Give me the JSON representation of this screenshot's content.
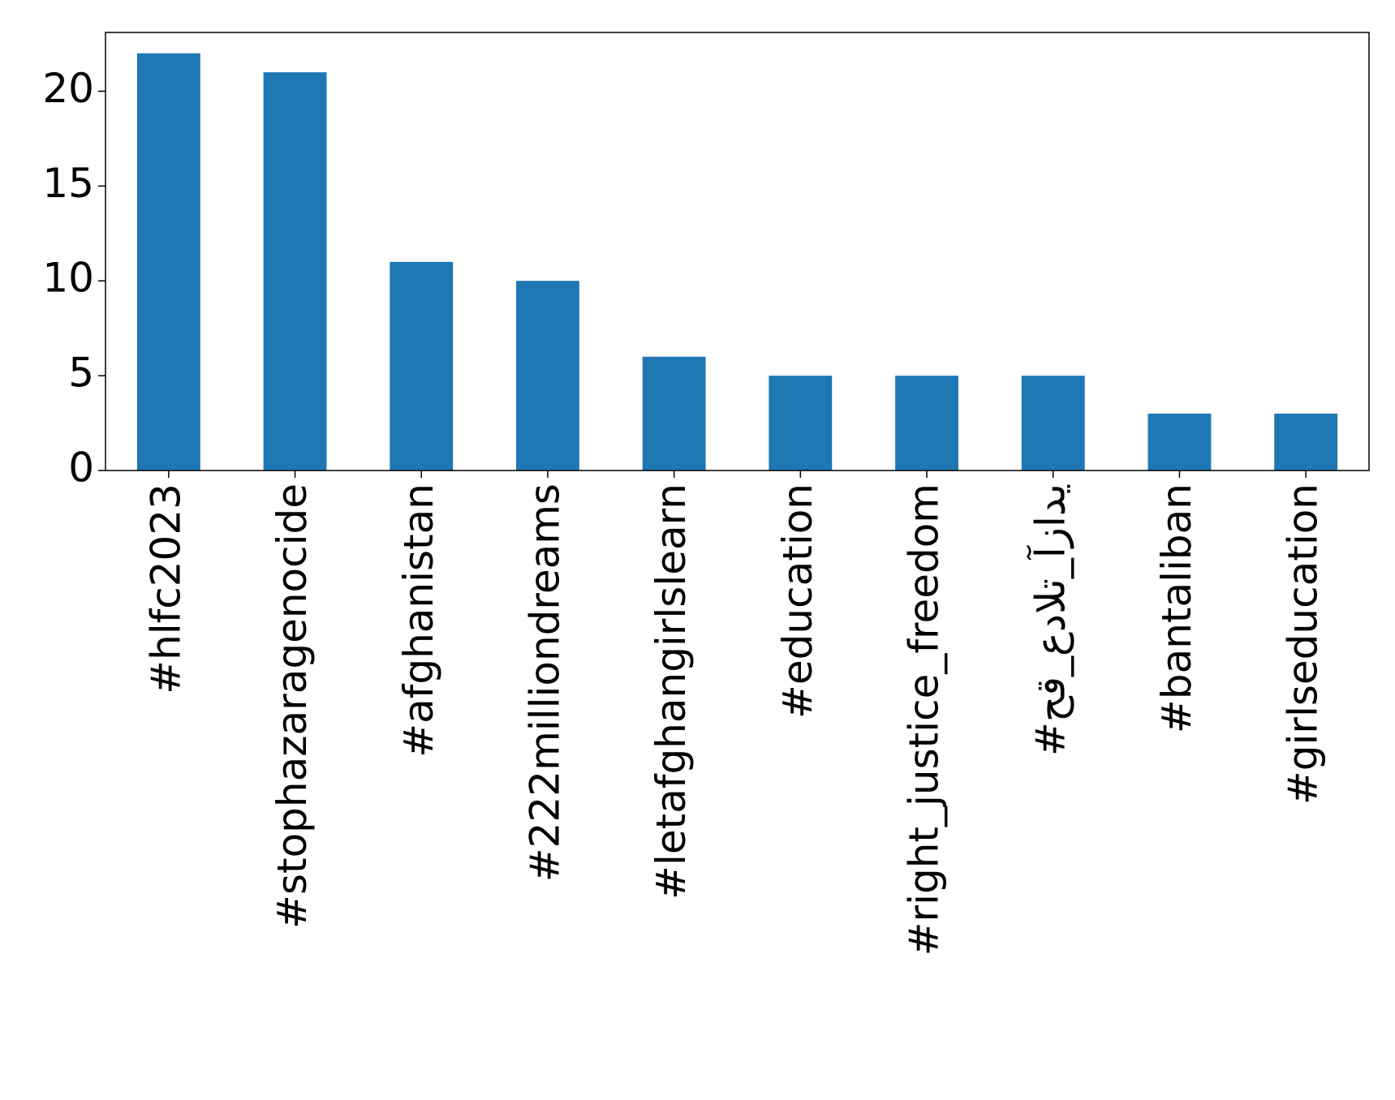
{
  "chart_data": {
    "type": "bar",
    "categories": [
      "#hlfc2023",
      "#stophazaragenocide",
      "#afghanistan",
      "#222milliondreams",
      "#letafghangirlslearn",
      "#education",
      "#right_justice_freedom",
      "#حق_عدالت_آزادی",
      "#bantaliban",
      "#girlseducation"
    ],
    "values": [
      22,
      21,
      11,
      10,
      6,
      5,
      5,
      5,
      3,
      3
    ],
    "color": "#1f77b4",
    "ylim": [
      0,
      23.1
    ],
    "yticks": [
      0,
      5,
      10,
      15,
      20
    ],
    "grid": false
  }
}
